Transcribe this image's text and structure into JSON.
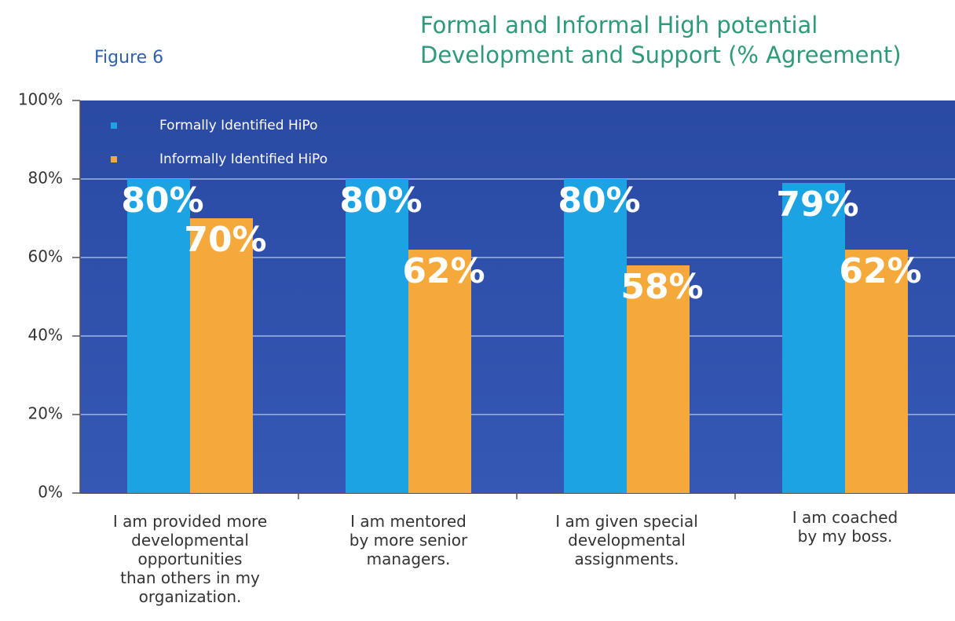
{
  "chart_data": {
    "type": "bar",
    "figure_label": "Figure 6",
    "title": "Formal and Informal High potential\nDevelopment and Support (% Agreement)",
    "categories": [
      "I am provided more\ndevelopmental\nopportunities\nthan others in my\norganization.",
      "I am mentored\nby more senior\nmanagers.",
      "I am given special\ndevelopmental\nassignments.",
      "I am coached\nby my boss."
    ],
    "series": [
      {
        "name": "Formally Identified HiPo",
        "color": "#1ba3e3",
        "values": [
          80,
          80,
          80,
          79
        ],
        "value_labels": [
          "80%",
          "80%",
          "80%",
          "79%"
        ]
      },
      {
        "name": "Informally Identified HiPo",
        "color": "#f6a93b",
        "values": [
          70,
          62,
          58,
          62
        ],
        "value_labels": [
          "70%",
          "62%",
          "58%",
          "62%"
        ]
      }
    ],
    "ylim": [
      0,
      100
    ],
    "yticks": [
      {
        "value": 0,
        "label": "0%"
      },
      {
        "value": 20,
        "label": "20%"
      },
      {
        "value": 40,
        "label": "40%"
      },
      {
        "value": 60,
        "label": "60%"
      },
      {
        "value": 80,
        "label": "80%"
      },
      {
        "value": 100,
        "label": "100%"
      }
    ],
    "grid": true,
    "legend": "top-left"
  }
}
